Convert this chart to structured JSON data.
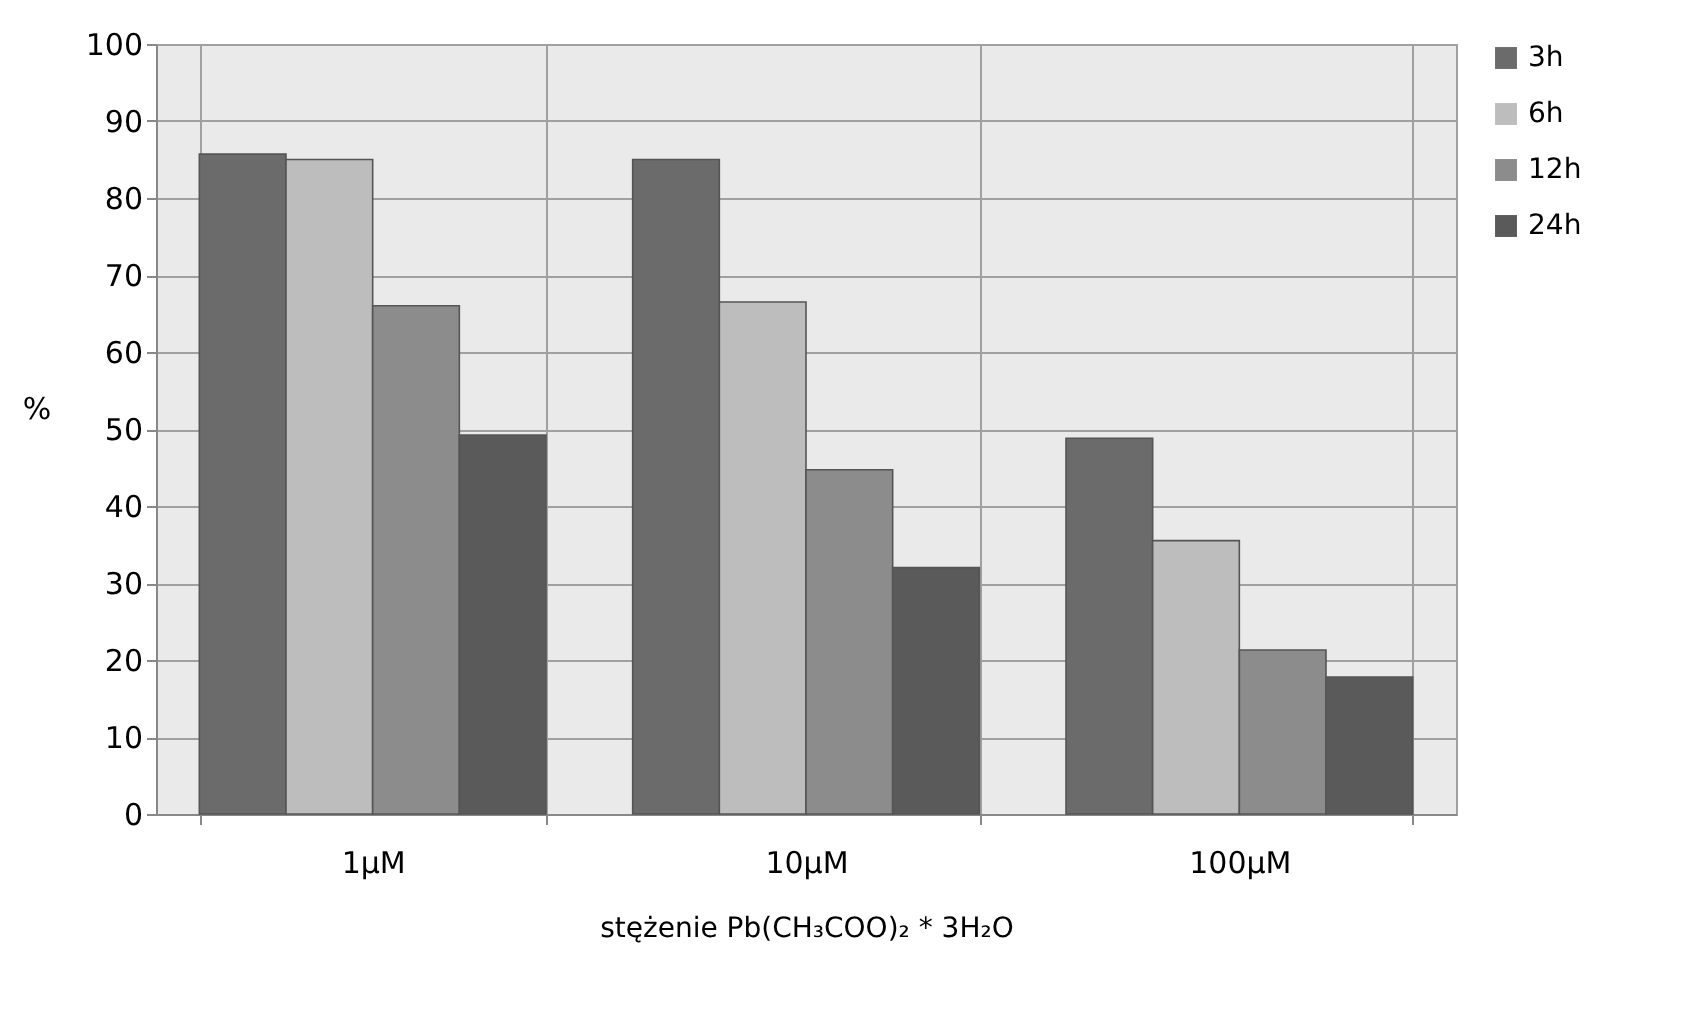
{
  "chart_data": {
    "type": "bar",
    "xlabel": "stężenie Pb(CH₃COO)₂ * 3H₂O",
    "ylabel": "%",
    "categories": [
      "1µM",
      "10µM",
      "100µM"
    ],
    "series": [
      {
        "name": "3h",
        "color": "#6b6b6b",
        "values": [
          85.7,
          85,
          48.8
        ]
      },
      {
        "name": "6h",
        "color": "#bdbdbd",
        "values": [
          85,
          66.5,
          35.5
        ]
      },
      {
        "name": "12h",
        "color": "#8c8c8c",
        "values": [
          66,
          44.7,
          21.3
        ]
      },
      {
        "name": "24h",
        "color": "#5a5a5a",
        "values": [
          49.2,
          32,
          17.8
        ]
      }
    ],
    "ylim": [
      0,
      100
    ],
    "yticks": [
      0,
      10,
      20,
      30,
      40,
      50,
      60,
      70,
      80,
      90,
      100
    ],
    "grid": true,
    "legend": "right"
  }
}
